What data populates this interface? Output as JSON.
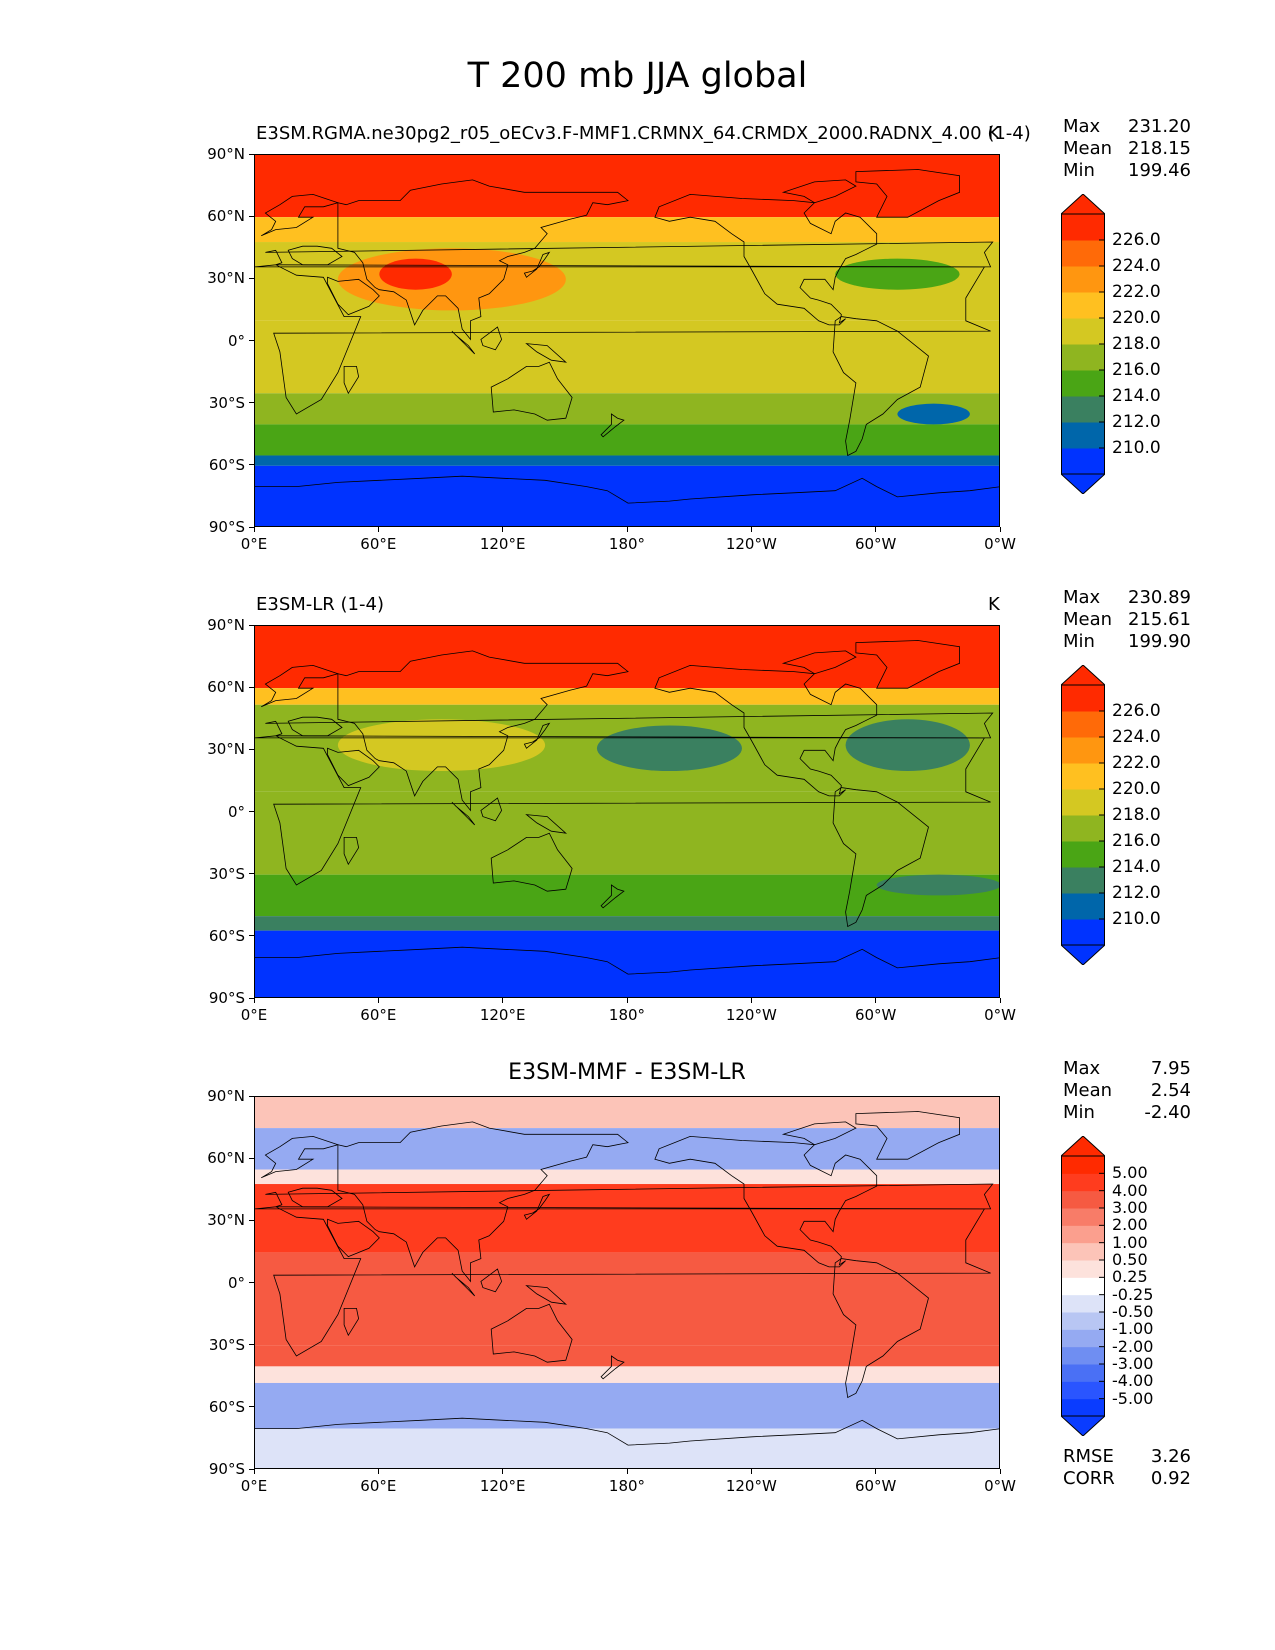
{
  "title": "T 200 mb JJA global",
  "axis": {
    "x_ticks": [
      "0°E",
      "60°E",
      "120°E",
      "180°",
      "120°W",
      "60°W",
      "0°W"
    ],
    "y_ticks": [
      "90°N",
      "60°N",
      "30°N",
      "0°",
      "30°S",
      "60°S",
      "90°S"
    ]
  },
  "panels": [
    {
      "name": "test",
      "title": "E3SM.RGMA.ne30pg2_r05_oECv3.F-MMF1.CRMNX_64.CRMDX_2000.RADNX_4.00 (1-4)",
      "units": "K",
      "stats": {
        "max_label": "Max",
        "max": "231.20",
        "mean_label": "Mean",
        "mean": "218.15",
        "min_label": "Min",
        "min": "199.46"
      },
      "colorbar_ticks": [
        "226.0",
        "224.0",
        "222.0",
        "220.0",
        "218.0",
        "216.0",
        "214.0",
        "212.0",
        "210.0"
      ]
    },
    {
      "name": "reference",
      "title": "E3SM-LR (1-4)",
      "units": "K",
      "stats": {
        "max_label": "Max",
        "max": "230.89",
        "mean_label": "Mean",
        "mean": "215.61",
        "min_label": "Min",
        "min": "199.90"
      },
      "colorbar_ticks": [
        "226.0",
        "224.0",
        "222.0",
        "220.0",
        "218.0",
        "216.0",
        "214.0",
        "212.0",
        "210.0"
      ]
    },
    {
      "name": "difference",
      "title": "E3SM-MMF - E3SM-LR",
      "stats": {
        "max_label": "Max",
        "max": "7.95",
        "mean_label": "Mean",
        "mean": "2.54",
        "min_label": "Min",
        "min": "-2.40"
      },
      "colorbar_ticks": [
        "5.00",
        "4.00",
        "3.00",
        "2.00",
        "1.00",
        "0.50",
        "0.25",
        "-0.25",
        "-0.50",
        "-1.00",
        "-2.00",
        "-3.00",
        "-4.00",
        "-5.00"
      ],
      "metrics": {
        "rmse_label": "RMSE",
        "rmse": "3.26",
        "corr_label": "CORR",
        "corr": "0.92"
      }
    }
  ],
  "colors": {
    "temp_levels": [
      "#0033ff",
      "#0066aa",
      "#3a8060",
      "#4aa515",
      "#8fb520",
      "#d4c822",
      "#ffc020",
      "#ff9610",
      "#ff6a08",
      "#ff2a00"
    ],
    "diff_levels": [
      "#0a3cff",
      "#2a55ff",
      "#4a70f5",
      "#6f8ef2",
      "#95aaf2",
      "#b8c6f3",
      "#dde3f8",
      "#ffffff",
      "#fde2dc",
      "#fcc4b8",
      "#fb9f8e",
      "#f87c68",
      "#f65a42",
      "#ff3c1e",
      "#ff2a00"
    ]
  },
  "chart_data": [
    {
      "type": "filled-contour-map",
      "title": "E3SM.RGMA.ne30pg2_r05_oECv3.F-MMF1.CRMNX_64.CRMDX_2000.RADNX_4.00 (1-4)",
      "variable": "T 200 mb JJA",
      "units": "K",
      "xlim": [
        0,
        360
      ],
      "ylim": [
        -90,
        90
      ],
      "levels": [
        210,
        212,
        214,
        216,
        218,
        220,
        222,
        224,
        226
      ],
      "zonal_bands": [
        {
          "lat": [
            60,
            90
          ],
          "value": 228
        },
        {
          "lat": [
            48,
            60
          ],
          "value": 221
        },
        {
          "lat": [
            10,
            48
          ],
          "value": 219
        },
        {
          "lat": [
            -25,
            10
          ],
          "value": 218
        },
        {
          "lat": [
            -40,
            -25
          ],
          "value": 216
        },
        {
          "lat": [
            -55,
            -40
          ],
          "value": 214
        },
        {
          "lat": [
            -60,
            -55
          ],
          "value": 211
        },
        {
          "lat": [
            -90,
            -60
          ],
          "value": 208
        }
      ],
      "features": [
        {
          "name": "asian-warm-max",
          "lon": [
            40,
            150
          ],
          "lat": [
            15,
            45
          ],
          "value": 223
        },
        {
          "name": "tibet-core",
          "lon": [
            60,
            95
          ],
          "lat": [
            25,
            40
          ],
          "value": 226
        },
        {
          "name": "north-atlantic-min",
          "lon": [
            280,
            340
          ],
          "lat": [
            25,
            40
          ],
          "value": 215
        },
        {
          "name": "south-atlantic-min",
          "lon": [
            310,
            345
          ],
          "lat": [
            -40,
            -30
          ],
          "value": 211
        }
      ]
    },
    {
      "type": "filled-contour-map",
      "title": "E3SM-LR (1-4)",
      "units": "K",
      "xlim": [
        0,
        360
      ],
      "ylim": [
        -90,
        90
      ],
      "levels": [
        210,
        212,
        214,
        216,
        218,
        220,
        222,
        224,
        226
      ],
      "zonal_bands": [
        {
          "lat": [
            60,
            90
          ],
          "value": 228
        },
        {
          "lat": [
            52,
            60
          ],
          "value": 221
        },
        {
          "lat": [
            10,
            52
          ],
          "value": 216
        },
        {
          "lat": [
            -30,
            10
          ],
          "value": 216
        },
        {
          "lat": [
            -50,
            -30
          ],
          "value": 215
        },
        {
          "lat": [
            -57,
            -50
          ],
          "value": 213
        },
        {
          "lat": [
            -90,
            -57
          ],
          "value": 208
        }
      ],
      "features": [
        {
          "name": "asian-warm-max",
          "lon": [
            40,
            140
          ],
          "lat": [
            20,
            45
          ],
          "value": 219
        },
        {
          "name": "north-pacific-min",
          "lon": [
            165,
            235
          ],
          "lat": [
            20,
            42
          ],
          "value": 213
        },
        {
          "name": "north-atlantic-min",
          "lon": [
            285,
            345
          ],
          "lat": [
            20,
            45
          ],
          "value": 213
        },
        {
          "name": "south-atlantic-min",
          "lon": [
            300,
            360
          ],
          "lat": [
            -40,
            -30
          ],
          "value": 212
        }
      ]
    },
    {
      "type": "filled-contour-map",
      "title": "E3SM-MMF - E3SM-LR",
      "xlim": [
        0,
        360
      ],
      "ylim": [
        -90,
        90
      ],
      "levels": [
        -5,
        -4,
        -3,
        -2,
        -1,
        -0.5,
        -0.25,
        0.25,
        0.5,
        1,
        2,
        3,
        4,
        5
      ],
      "zonal_bands": [
        {
          "lat": [
            75,
            90
          ],
          "value": 0.5
        },
        {
          "lat": [
            55,
            75
          ],
          "value": -1.5
        },
        {
          "lat": [
            48,
            55
          ],
          "value": 0.3
        },
        {
          "lat": [
            15,
            48
          ],
          "value": 4.0
        },
        {
          "lat": [
            -30,
            15
          ],
          "value": 3.2
        },
        {
          "lat": [
            -40,
            -30
          ],
          "value": 3.0
        },
        {
          "lat": [
            -48,
            -40
          ],
          "value": 0.3
        },
        {
          "lat": [
            -70,
            -48
          ],
          "value": -1.5
        },
        {
          "lat": [
            -90,
            -70
          ],
          "value": -0.5
        }
      ],
      "rmse": 3.26,
      "corr": 0.92
    }
  ]
}
